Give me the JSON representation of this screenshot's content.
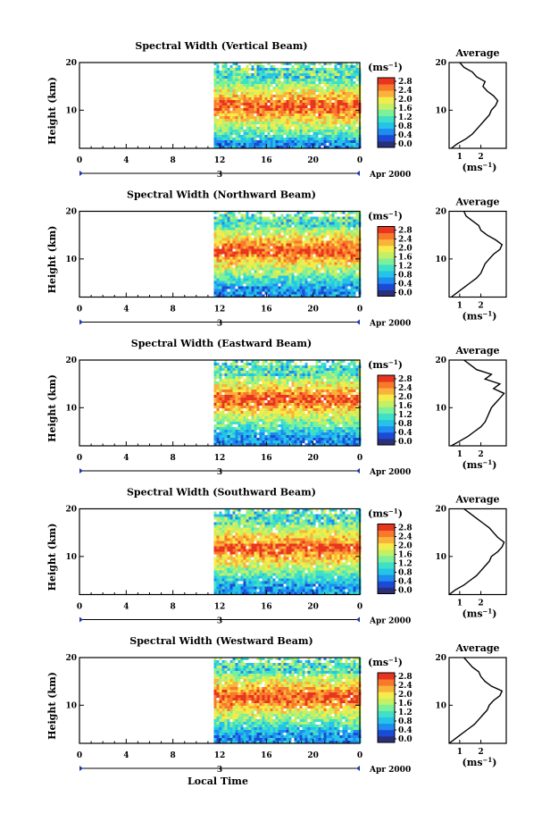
{
  "figure": {
    "xlabel": "Local Time",
    "date_label": "Apr 2000",
    "day_label": "3"
  },
  "colorbar": {
    "unit_label": "(ms",
    "unit_exp": "−1",
    "unit_close": ")",
    "ticks": [
      "2.8",
      "2.4",
      "2.0",
      "1.6",
      "1.2",
      "0.8",
      "0.4",
      "0.0"
    ],
    "colors": [
      "#2b2f7a",
      "#1b4bd6",
      "#1e8cf0",
      "#25c3e8",
      "#3fe0c8",
      "#7ef09a",
      "#c4f066",
      "#f5ec4a",
      "#fbb23a",
      "#f8782c",
      "#e8351f"
    ]
  },
  "chart_data": [
    {
      "type": "heatmap",
      "title": "Spectral Width (Vertical Beam)",
      "ylabel": "Height (km)",
      "x_ticks": [
        "0",
        "4",
        "8",
        "12",
        "16",
        "20",
        "0"
      ],
      "y_ticks": [
        "20",
        "10"
      ],
      "xlim": [
        0,
        24
      ],
      "ylim": [
        2,
        20
      ],
      "data_start_hour": 11.5,
      "peak_height_km": 11,
      "profile": {
        "title": "Average",
        "xlabel": "(ms",
        "x_ticks": [
          "1",
          "2"
        ],
        "y_ticks": [
          "20",
          "10"
        ],
        "height_km": [
          2,
          3,
          4,
          5,
          6,
          7,
          8,
          9,
          10,
          11,
          12,
          13,
          14,
          15,
          16,
          17,
          18,
          19,
          20
        ],
        "width_ms": [
          0.6,
          0.9,
          1.3,
          1.6,
          1.8,
          2.0,
          2.2,
          2.4,
          2.5,
          2.7,
          2.8,
          2.6,
          2.3,
          2.1,
          2.2,
          1.8,
          1.6,
          1.2,
          1.0
        ]
      }
    },
    {
      "type": "heatmap",
      "title": "Spectral Width (Northward Beam)",
      "ylabel": "Height (km)",
      "x_ticks": [
        "0",
        "4",
        "8",
        "12",
        "16",
        "20",
        "0"
      ],
      "y_ticks": [
        "20",
        "10"
      ],
      "xlim": [
        0,
        24
      ],
      "ylim": [
        2,
        20
      ],
      "data_start_hour": 11.5,
      "peak_height_km": 12,
      "profile": {
        "title": "Average",
        "xlabel": "(ms",
        "x_ticks": [
          "1",
          "2"
        ],
        "y_ticks": [
          "20",
          "10"
        ],
        "height_km": [
          2,
          3,
          4,
          5,
          6,
          7,
          8,
          9,
          10,
          11,
          12,
          13,
          14,
          15,
          16,
          17,
          18,
          19,
          20
        ],
        "width_ms": [
          0.6,
          0.9,
          1.2,
          1.5,
          1.8,
          2.0,
          2.1,
          2.2,
          2.4,
          2.6,
          2.9,
          3.0,
          2.7,
          2.3,
          2.0,
          1.9,
          1.6,
          1.3,
          1.2
        ]
      }
    },
    {
      "type": "heatmap",
      "title": "Spectral Width (Eastward Beam)",
      "ylabel": "Height (km)",
      "x_ticks": [
        "0",
        "4",
        "8",
        "12",
        "16",
        "20",
        "0"
      ],
      "y_ticks": [
        "20",
        "10"
      ],
      "xlim": [
        0,
        24
      ],
      "ylim": [
        2,
        20
      ],
      "data_start_hour": 11.5,
      "peak_height_km": 12,
      "profile": {
        "title": "Average",
        "xlabel": "(ms",
        "x_ticks": [
          "1",
          "2"
        ],
        "y_ticks": [
          "20",
          "10"
        ],
        "height_km": [
          2,
          3,
          4,
          5,
          6,
          7,
          8,
          9,
          10,
          11,
          12,
          13,
          14,
          15,
          16,
          17,
          18,
          19,
          20
        ],
        "width_ms": [
          0.6,
          1.0,
          1.4,
          1.7,
          2.0,
          2.2,
          2.3,
          2.4,
          2.5,
          2.7,
          2.9,
          3.1,
          2.6,
          2.9,
          2.2,
          2.5,
          1.8,
          1.5,
          1.2
        ]
      }
    },
    {
      "type": "heatmap",
      "title": "Spectral Width (Southward Beam)",
      "ylabel": "Height (km)",
      "x_ticks": [
        "0",
        "4",
        "8",
        "12",
        "16",
        "20",
        "0"
      ],
      "y_ticks": [
        "20",
        "10"
      ],
      "xlim": [
        0,
        24
      ],
      "ylim": [
        2,
        20
      ],
      "data_start_hour": 11.5,
      "peak_height_km": 12,
      "profile": {
        "title": "Average",
        "xlabel": "(ms",
        "x_ticks": [
          "1",
          "2"
        ],
        "y_ticks": [
          "20",
          "10"
        ],
        "height_km": [
          2,
          3,
          4,
          5,
          6,
          7,
          8,
          9,
          10,
          11,
          12,
          13,
          14,
          15,
          16,
          17,
          18,
          19,
          20
        ],
        "width_ms": [
          0.5,
          0.8,
          1.2,
          1.5,
          1.8,
          2.0,
          2.2,
          2.4,
          2.5,
          2.8,
          3.0,
          3.1,
          2.8,
          2.6,
          2.4,
          2.1,
          1.8,
          1.5,
          1.2
        ]
      }
    },
    {
      "type": "heatmap",
      "title": "Spectral Width (Westward Beam)",
      "ylabel": "Height (km)",
      "x_ticks": [
        "0",
        "4",
        "8",
        "12",
        "16",
        "20",
        "0"
      ],
      "y_ticks": [
        "20",
        "10"
      ],
      "xlim": [
        0,
        24
      ],
      "ylim": [
        2,
        20
      ],
      "data_start_hour": 11.5,
      "peak_height_km": 12,
      "profile": {
        "title": "Average",
        "xlabel": "(ms",
        "x_ticks": [
          "1",
          "2"
        ],
        "y_ticks": [
          "20",
          "10"
        ],
        "height_km": [
          2,
          3,
          4,
          5,
          6,
          7,
          8,
          9,
          10,
          11,
          12,
          13,
          14,
          15,
          16,
          17,
          18,
          19,
          20
        ],
        "width_ms": [
          0.5,
          0.8,
          1.1,
          1.4,
          1.7,
          1.9,
          2.1,
          2.3,
          2.4,
          2.6,
          2.9,
          3.0,
          2.5,
          2.2,
          2.0,
          1.9,
          1.6,
          1.4,
          1.2
        ]
      }
    }
  ]
}
